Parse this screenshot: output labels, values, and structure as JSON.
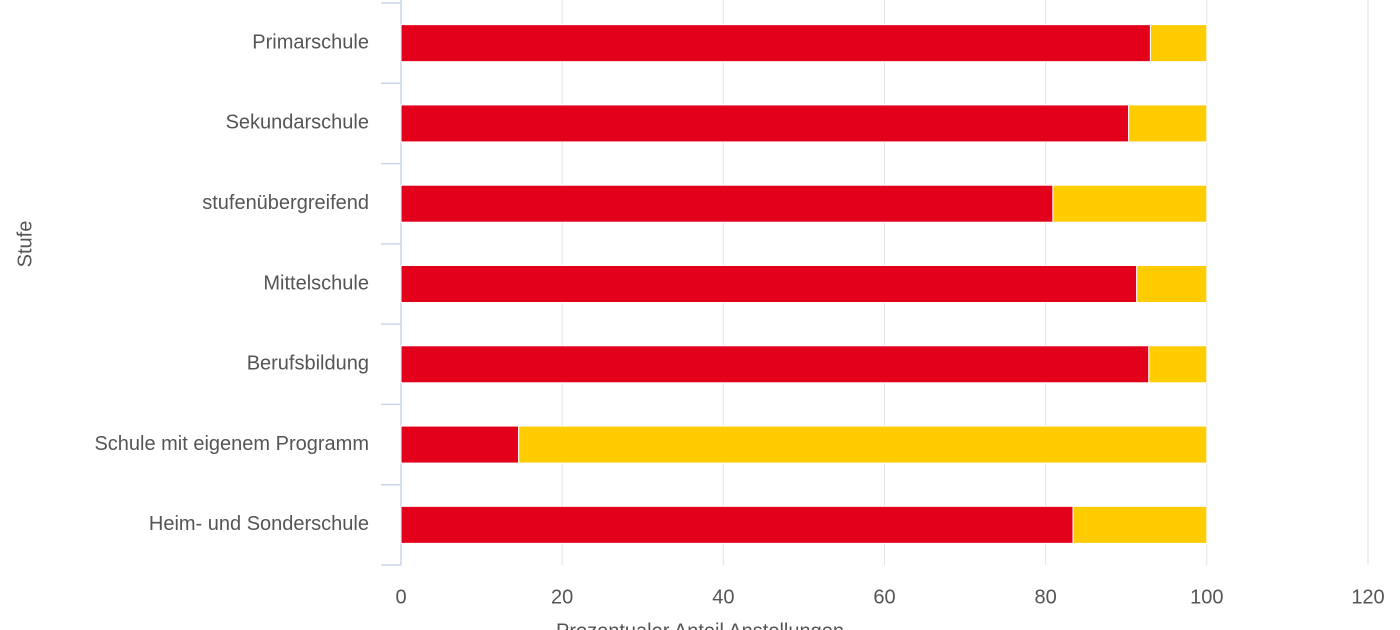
{
  "chart_data": {
    "type": "stacked_bar_horizontal",
    "x_label": "Prozentualer Anteil Anstellungen",
    "y_label": "Stufe",
    "categories": [
      "Primarschule",
      "Sekundarschule",
      "stufenübergreifend",
      "Mittelschule",
      "Berufsbildung",
      "Schule mit eigenem Programm",
      "Heim- und Sonderschule"
    ],
    "series": [
      {
        "color": "#e2001a",
        "values": [
          93,
          90.3,
          80.9,
          91.3,
          92.8,
          14.6,
          83.4
        ]
      },
      {
        "color": "#ffcc00",
        "values": [
          7,
          9.7,
          19.1,
          8.7,
          7.2,
          85.4,
          16.6
        ]
      }
    ],
    "xlim": [
      0,
      120
    ],
    "xticks": [
      0,
      20,
      40,
      60,
      80,
      100,
      120
    ],
    "grid": true
  }
}
